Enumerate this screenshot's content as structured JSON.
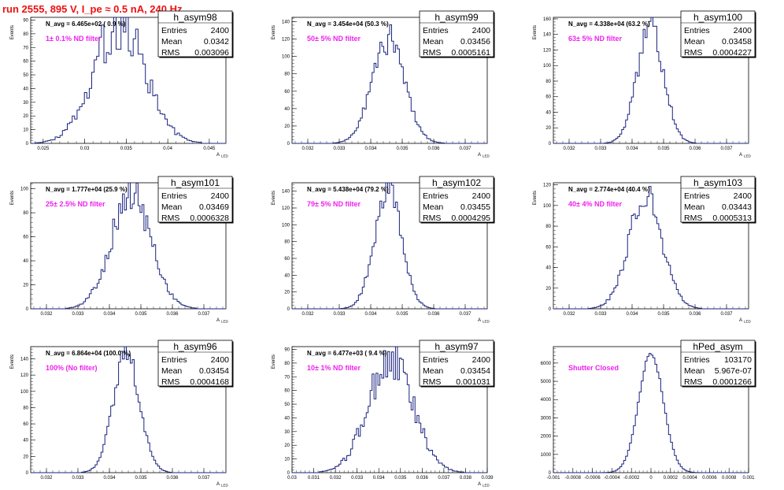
{
  "page": {
    "title": "run 2555,   895 V, I_pe ≈ 0.5 nA, 240 Hz",
    "title_color": "#ee1111",
    "line_color": "#1a237e",
    "label_color": "#ee22ee"
  },
  "chart_data": [
    {
      "type": "histogram",
      "name": "h_asym98",
      "stats": {
        "Entries": "2400",
        "Mean": "0.0342",
        "RMS": "0.003096"
      },
      "n_avg_text": "N_avg = 6.465e+02 ( 0.9 %)",
      "filter_label": "1± 0.1% ND filter",
      "ylabel": "Events",
      "xlabel": "A_LED",
      "xlim": [
        0.0235,
        0.047
      ],
      "ylim": [
        0,
        92
      ],
      "xticks": [
        0.025,
        0.03,
        0.035,
        0.04,
        0.045
      ],
      "xtick_labels": [
        "0.025",
        "0.03",
        "0.035",
        "0.04",
        "0.045"
      ],
      "yticks": [
        0,
        10,
        20,
        30,
        40,
        50,
        60,
        70,
        80,
        90
      ],
      "bins": {
        "lo": 0.0235,
        "hi": 0.047,
        "n": 80
      },
      "shape": {
        "mean": 0.0342,
        "rms": 0.003096,
        "peak": 88,
        "noise": 0.22,
        "seed": 98
      }
    },
    {
      "type": "histogram",
      "name": "h_asym99",
      "stats": {
        "Entries": "2400",
        "Mean": "0.03456",
        "RMS": "0.0005161"
      },
      "n_avg_text": "N_avg = 3.454e+04 (50.3 %)",
      "filter_label": "50± 5% ND filter",
      "ylabel": "Events",
      "xlabel": "A_LED",
      "xlim": [
        0.0315,
        0.0377
      ],
      "ylim": [
        0,
        145
      ],
      "xticks": [
        0.032,
        0.033,
        0.034,
        0.035,
        0.036,
        0.037
      ],
      "xtick_labels": [
        "0.032",
        "0.033",
        "0.034",
        "0.035",
        "0.036",
        "0.037"
      ],
      "yticks": [
        0,
        20,
        40,
        60,
        80,
        100,
        120,
        140
      ],
      "bins": {
        "lo": 0.0315,
        "hi": 0.0377,
        "n": 100
      },
      "shape": {
        "mean": 0.03456,
        "rms": 0.0005161,
        "peak": 120,
        "noise": 0.15,
        "seed": 99
      }
    },
    {
      "type": "histogram",
      "name": "h_asym100",
      "stats": {
        "Entries": "2400",
        "Mean": "0.03458",
        "RMS": "0.0004227"
      },
      "n_avg_text": "N_avg = 4.338e+04 (63.2 %)",
      "filter_label": "63± 5% ND filter",
      "ylabel": "Events",
      "xlabel": "A_LED",
      "xlim": [
        0.0315,
        0.0377
      ],
      "ylim": [
        0,
        162
      ],
      "xticks": [
        0.032,
        0.033,
        0.034,
        0.035,
        0.036,
        0.037
      ],
      "xtick_labels": [
        "0.032",
        "0.033",
        "0.034",
        "0.035",
        "0.036",
        "0.037"
      ],
      "yticks": [
        0,
        20,
        40,
        60,
        80,
        100,
        120,
        140,
        160
      ],
      "bins": {
        "lo": 0.0315,
        "hi": 0.0377,
        "n": 100
      },
      "shape": {
        "mean": 0.03458,
        "rms": 0.0004227,
        "peak": 148,
        "noise": 0.12,
        "seed": 100
      }
    },
    {
      "type": "histogram",
      "name": "h_asym101",
      "stats": {
        "Entries": "2400",
        "Mean": "0.03469",
        "RMS": "0.0006328"
      },
      "n_avg_text": "N_avg = 1.777e+04 (25.9 %)",
      "filter_label": "25± 2.5% ND filter",
      "ylabel": "Events",
      "xlabel": "A_LED",
      "xlim": [
        0.0315,
        0.0377
      ],
      "ylim": [
        0,
        105
      ],
      "xticks": [
        0.032,
        0.033,
        0.034,
        0.035,
        0.036,
        0.037
      ],
      "xtick_labels": [
        "0.032",
        "0.033",
        "0.034",
        "0.035",
        "0.036",
        "0.037"
      ],
      "yticks": [
        0,
        20,
        40,
        60,
        80,
        100
      ],
      "bins": {
        "lo": 0.0315,
        "hi": 0.0377,
        "n": 100
      },
      "shape": {
        "mean": 0.03469,
        "rms": 0.0006328,
        "peak": 95,
        "noise": 0.17,
        "seed": 101
      }
    },
    {
      "type": "histogram",
      "name": "h_asym102",
      "stats": {
        "Entries": "2400",
        "Mean": "0.03455",
        "RMS": "0.0004295"
      },
      "n_avg_text": "N_avg = 5.438e+04 (79.2 %)",
      "filter_label": "79± 5% ND filter",
      "ylabel": "Events",
      "xlabel": "A_LED",
      "xlim": [
        0.0315,
        0.0377
      ],
      "ylim": [
        0,
        150
      ],
      "xticks": [
        0.032,
        0.033,
        0.034,
        0.035,
        0.036,
        0.037
      ],
      "xtick_labels": [
        "0.032",
        "0.033",
        "0.034",
        "0.035",
        "0.036",
        "0.037"
      ],
      "yticks": [
        0,
        20,
        40,
        60,
        80,
        100,
        120,
        140
      ],
      "bins": {
        "lo": 0.0315,
        "hi": 0.0377,
        "n": 100
      },
      "shape": {
        "mean": 0.03455,
        "rms": 0.0004295,
        "peak": 140,
        "noise": 0.12,
        "seed": 102
      }
    },
    {
      "type": "histogram",
      "name": "h_asym103",
      "stats": {
        "Entries": "2400",
        "Mean": "0.03443",
        "RMS": "0.0005313"
      },
      "n_avg_text": "N_avg = 2.774e+04 (40.4 %)",
      "filter_label": "40± 4% ND filter",
      "ylabel": "Events",
      "xlabel": "A_LED",
      "xlim": [
        0.0315,
        0.0377
      ],
      "ylim": [
        0,
        122
      ],
      "xticks": [
        0.032,
        0.033,
        0.034,
        0.035,
        0.036,
        0.037
      ],
      "xtick_labels": [
        "0.032",
        "0.033",
        "0.034",
        "0.035",
        "0.036",
        "0.037"
      ],
      "yticks": [
        0,
        20,
        40,
        60,
        80,
        100,
        120
      ],
      "bins": {
        "lo": 0.0315,
        "hi": 0.0377,
        "n": 100
      },
      "shape": {
        "mean": 0.03443,
        "rms": 0.0005313,
        "peak": 110,
        "noise": 0.15,
        "seed": 103
      }
    },
    {
      "type": "histogram",
      "name": "h_asym96",
      "stats": {
        "Entries": "2400",
        "Mean": "0.03454",
        "RMS": "0.0004168"
      },
      "n_avg_text": "N_avg = 6.864e+04 (100.0 %)",
      "filter_label": "100% (No filter)",
      "ylabel": "Events",
      "xlabel": "A_LED",
      "xlim": [
        0.0315,
        0.0377
      ],
      "ylim": [
        0,
        155
      ],
      "xticks": [
        0.032,
        0.033,
        0.034,
        0.035,
        0.036,
        0.037
      ],
      "xtick_labels": [
        "0.032",
        "0.033",
        "0.034",
        "0.035",
        "0.036",
        "0.037"
      ],
      "yticks": [
        0,
        20,
        40,
        60,
        80,
        100,
        120,
        140
      ],
      "bins": {
        "lo": 0.0315,
        "hi": 0.0377,
        "n": 100
      },
      "shape": {
        "mean": 0.03454,
        "rms": 0.0004168,
        "peak": 148,
        "noise": 0.12,
        "seed": 96
      }
    },
    {
      "type": "histogram",
      "name": "h_asym97",
      "stats": {
        "Entries": "2400",
        "Mean": "0.03454",
        "RMS": "0.001031"
      },
      "n_avg_text": "N_avg = 6.477e+03 ( 9.4 %)",
      "filter_label": "10± 1% ND filter",
      "ylabel": "Events",
      "xlabel": "A_LED",
      "xlim": [
        0.03,
        0.039
      ],
      "ylim": [
        0,
        92
      ],
      "xticks": [
        0.03,
        0.031,
        0.032,
        0.033,
        0.034,
        0.035,
        0.036,
        0.037,
        0.038,
        0.039
      ],
      "xtick_labels": [
        "0.03",
        "0.031",
        "0.032",
        "0.033",
        "0.034",
        "0.035",
        "0.036",
        "0.037",
        "0.038",
        "0.039"
      ],
      "yticks": [
        0,
        10,
        20,
        30,
        40,
        50,
        60,
        70,
        80,
        90
      ],
      "bins": {
        "lo": 0.03,
        "hi": 0.039,
        "n": 100
      },
      "shape": {
        "mean": 0.03454,
        "rms": 0.001031,
        "peak": 82,
        "noise": 0.2,
        "seed": 97
      }
    },
    {
      "type": "histogram",
      "name": "hPed_asym",
      "stats": {
        "Entries": "103170",
        "Mean": "5.967e-07",
        "RMS": "0.0001266"
      },
      "n_avg_text": "",
      "filter_label": "Shutter Closed",
      "ylabel": "",
      "xlabel": "",
      "xlim": [
        -0.001,
        0.001
      ],
      "ylim": [
        0,
        6900
      ],
      "xticks": [
        -0.001,
        -0.0008,
        -0.0006,
        -0.0004,
        -0.0002,
        0,
        0.0002,
        0.0004,
        0.0006,
        0.0008,
        0.001
      ],
      "xtick_labels": [
        "-0.001",
        "-0.0008",
        "-0.0006",
        "-0.0004",
        "-0.0002",
        "0",
        "0.0002",
        "0.0004",
        "0.0006",
        "0.0008",
        "0.001"
      ],
      "yticks": [
        0,
        1000,
        2000,
        3000,
        4000,
        5000,
        6000
      ],
      "bins": {
        "lo": -0.001,
        "hi": 0.001,
        "n": 100
      },
      "shape": {
        "mean": 6e-07,
        "rms": 0.0001266,
        "peak": 6500,
        "noise": 0.02,
        "seed": 7
      }
    }
  ]
}
